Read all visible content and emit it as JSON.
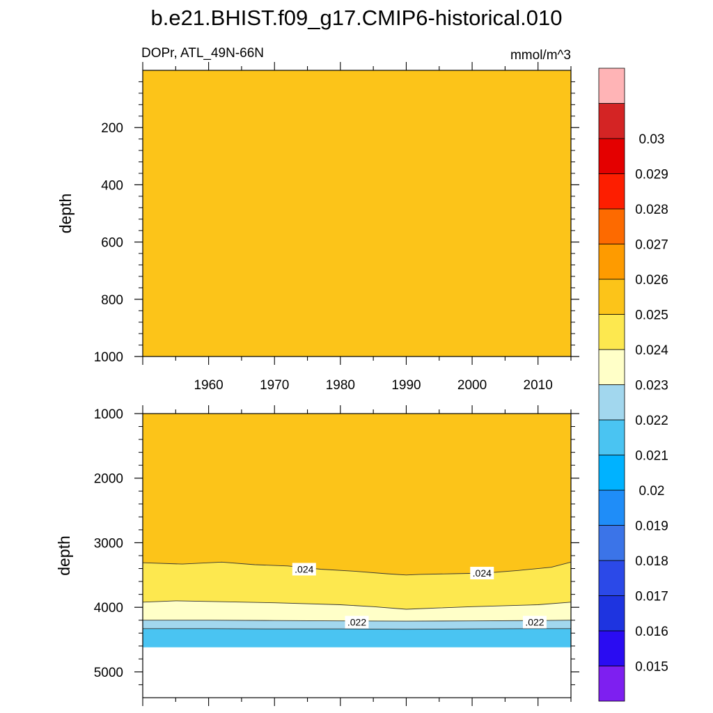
{
  "chart_data": {
    "type": "heatmap",
    "title": "b.e21.BHIST.f09_g17.CMIP6-historical.010",
    "variable_label": "DOPr, ATL_49N-66N",
    "units_label": "mmol/m^3",
    "x_ticks": [
      "1960",
      "1970",
      "1980",
      "1990",
      "2000",
      "2010"
    ],
    "x_range": [
      1950,
      2015
    ],
    "upper_panel": {
      "ylabel": "depth",
      "ylim": [
        0,
        1000
      ],
      "y_inverted": true,
      "y_ticks": [
        "200",
        "400",
        "600",
        "800",
        "1000"
      ],
      "fill_color": "#fcc419",
      "value_band": "0.024-0.025"
    },
    "lower_panel": {
      "ylabel": "depth",
      "ylim": [
        1000,
        5400
      ],
      "y_inverted": true,
      "y_ticks": [
        "1000",
        "2000",
        "3000",
        "4000",
        "5000"
      ],
      "missing_below_depth": 4620,
      "contours": [
        {
          "level": "0.024",
          "label": ".024",
          "x": [
            1950,
            1956,
            1962,
            1967,
            1972,
            1977,
            1982,
            1987,
            1990,
            1992,
            1997,
            2002,
            2007,
            2012,
            2015
          ],
          "depth": [
            3310,
            3330,
            3300,
            3340,
            3360,
            3410,
            3440,
            3480,
            3500,
            3490,
            3480,
            3470,
            3430,
            3380,
            3300
          ]
        },
        {
          "level": "0.023",
          "x": [
            1950,
            1955,
            1960,
            1970,
            1980,
            1985,
            1990,
            1995,
            2000,
            2010,
            2015
          ],
          "depth": [
            3920,
            3900,
            3910,
            3930,
            3960,
            3990,
            4030,
            4010,
            3990,
            3960,
            3920
          ]
        },
        {
          "level": "0.022",
          "label": ".022",
          "x": [
            1950,
            1960,
            1970,
            1980,
            1990,
            2000,
            2010,
            2015
          ],
          "depth": [
            4200,
            4200,
            4205,
            4210,
            4215,
            4210,
            4205,
            4200
          ]
        },
        {
          "level": "0.021",
          "x": [
            1950,
            1960,
            1970,
            1980,
            1990,
            2000,
            2010,
            2015
          ],
          "depth": [
            4330,
            4330,
            4335,
            4335,
            4340,
            4335,
            4330,
            4330
          ]
        }
      ],
      "contour_labels": [
        {
          "text": ".024",
          "x": 1974.5,
          "depth": 3410
        },
        {
          "text": ".024",
          "x": 2001.5,
          "depth": 3470
        },
        {
          "text": ".022",
          "x": 1982.5,
          "depth": 4230
        },
        {
          "text": ".022",
          "x": 2009.5,
          "depth": 4230
        }
      ]
    },
    "colorbar": {
      "levels": [
        "0.015",
        "0.016",
        "0.017",
        "0.018",
        "0.019",
        "0.02",
        "0.021",
        "0.022",
        "0.023",
        "0.024",
        "0.025",
        "0.026",
        "0.027",
        "0.028",
        "0.029",
        "0.03"
      ],
      "colors": [
        "#7e1ff0",
        "#2a0cf2",
        "#1e34e0",
        "#2b49e8",
        "#3b74e8",
        "#1f8df8",
        "#00b2ff",
        "#4ac4f2",
        "#a2d7ee",
        "#ffffc8",
        "#fde84f",
        "#fcc419",
        "#fe9b00",
        "#fd6a00",
        "#fd1e00",
        "#e40000",
        "#d42424",
        "#ffb4b6"
      ]
    },
    "band_colors": {
      "c_021_022": "#4ac4f2",
      "c_022_023": "#a2d7ee",
      "c_023_024": "#ffffc8",
      "c_024_025_low": "#fde84f",
      "c_024_025": "#fcc419"
    }
  }
}
